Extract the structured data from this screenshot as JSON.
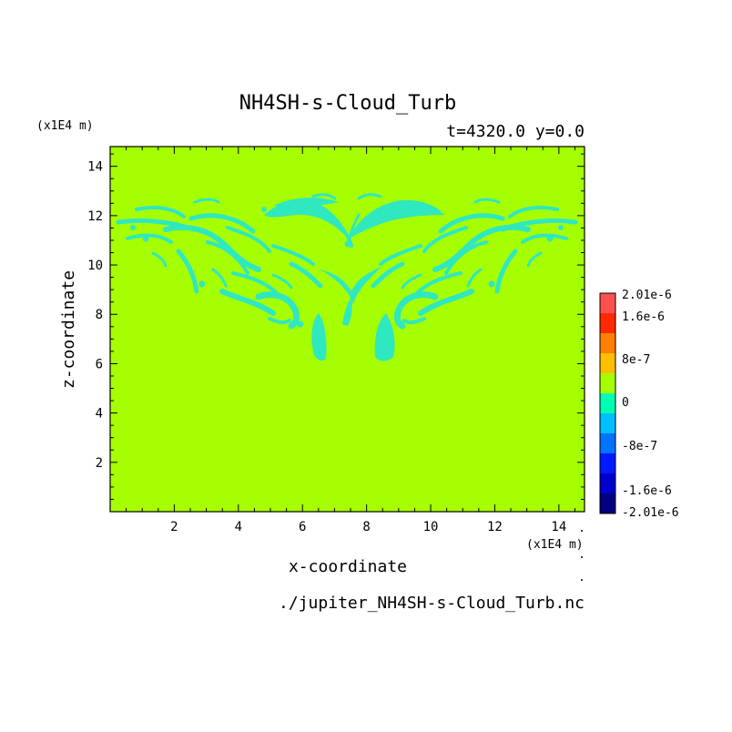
{
  "chart_data": {
    "type": "heatmap",
    "title": "NH4SH-s-Cloud_Turb",
    "subtitle": "t=4320.0 y=0.0",
    "xlabel": "x-coordinate",
    "ylabel": "z-coordinate",
    "x_unit": "(x1E4 m)",
    "y_unit": "(x1E4 m)",
    "footer": "./jupiter_NH4SH-s-Cloud_Turb.nc",
    "xlim": [
      0,
      14.8
    ],
    "ylim": [
      0,
      14.8
    ],
    "x_ticks": [
      2,
      4,
      6,
      8,
      10,
      12,
      14
    ],
    "y_ticks": [
      2,
      4,
      6,
      8,
      10,
      12,
      14
    ],
    "background_level": "0",
    "features": [
      {
        "kind": "mushroom-stem",
        "value": "-4e-7",
        "x_center": 6.6,
        "z_range": [
          6.3,
          8.3
        ]
      },
      {
        "kind": "mushroom-stem",
        "value": "-4e-7",
        "x_center": 8.4,
        "z_range": [
          6.3,
          8.3
        ]
      },
      {
        "kind": "turbulent-band",
        "value": "-4e-7",
        "x_range": [
          0.3,
          14.6
        ],
        "z_range": [
          7.8,
          13.0
        ]
      }
    ],
    "colorbar": {
      "labels": [
        "2.01e-6",
        "1.6e-6",
        "8e-7",
        "0",
        "-8e-7",
        "-1.6e-6",
        "-2.01e-6"
      ],
      "colors": [
        "#ff5050",
        "#ff2a00",
        "#ff7f00",
        "#ffbf00",
        "#a6ff00",
        "#00ffb3",
        "#00bfff",
        "#0073ff",
        "#0019ff",
        "#0000cc",
        "#000080"
      ],
      "background_color": "#a6ff00",
      "feature_color": "#2fe8c0"
    }
  }
}
